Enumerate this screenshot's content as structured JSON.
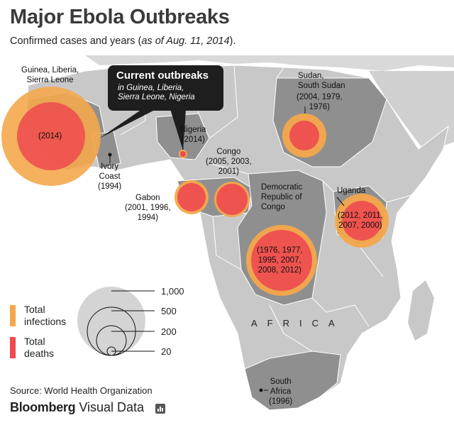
{
  "title": "Major Ebola Outbreaks",
  "subtitle_main": "Confirmed cases and years (",
  "subtitle_italic": "as of Aug. 11, 2014",
  "subtitle_end": ").",
  "callout": {
    "heading": "Current outbreaks",
    "line1": "in Guinea, Liberia,",
    "line2": "Sierra Leone, Nigeria"
  },
  "region_label": "AFRICA",
  "labels": {
    "guinea_name1": "Guinea, Liberia,",
    "guinea_name2": "Sierra Leone",
    "guinea_years": "(2014)",
    "ivory1": "Ivory",
    "ivory2": "Coast",
    "ivory3": "(1994)",
    "nigeria1": "Nigeria",
    "nigeria2": "(2014)",
    "gabon1": "Gabon",
    "gabon2": "(2001, 1996,",
    "gabon3": "1994)",
    "congo1": "Congo",
    "congo2": "(2005, 2003,",
    "congo3": "2001)",
    "drc1": "Democratic",
    "drc2": "Republic of",
    "drc3": "Congo",
    "drc_y1": "(1976, 1977,",
    "drc_y2": "1995, 2007,",
    "drc_y3": "2008, 2012)",
    "sudan1": "Sudan,",
    "sudan2": "South Sudan",
    "sudan3": "(2004, 1979,",
    "sudan4": "1976)",
    "uganda": "Uganda",
    "uganda_y1": "(2012, 2011,",
    "uganda_y2": "2007, 2000)",
    "sa1": "South",
    "sa2": "Africa",
    "sa3": "(1996)"
  },
  "legend": {
    "infections": [
      "Total",
      "infections"
    ],
    "deaths": [
      "Total",
      "deaths"
    ],
    "sizes": [
      "1,000",
      "500",
      "200",
      "20"
    ]
  },
  "colors": {
    "infections": "#f4a84c",
    "deaths": "#ee4a4f",
    "map_dark": "#8f8f8f",
    "map_light": "#c8c8c8"
  },
  "source": "Source: World Health Organization",
  "brand_bold": "Bloomberg",
  "brand_light": " Visual Data"
}
